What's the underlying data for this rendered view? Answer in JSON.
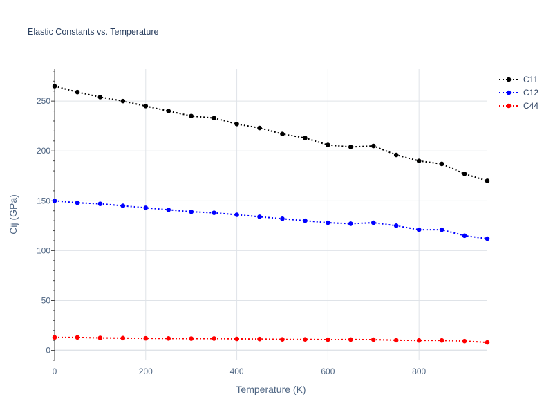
{
  "chart_data": {
    "type": "line",
    "title": "Elastic Constants vs. Temperature",
    "xlabel": "Temperature (K)",
    "ylabel": "Cij (GPa)",
    "xlim": [
      0,
      950
    ],
    "ylim": [
      -10,
      282
    ],
    "x_ticks": [
      "0",
      "200",
      "400",
      "600",
      "800"
    ],
    "y_ticks": [
      "0",
      "50",
      "100",
      "150",
      "200",
      "250"
    ],
    "grid": true,
    "legend_position": "top-right",
    "line_style": "dotted",
    "x": [
      0,
      50,
      100,
      150,
      200,
      250,
      300,
      350,
      400,
      450,
      500,
      550,
      600,
      650,
      700,
      750,
      800,
      850,
      900,
      950
    ],
    "series": [
      {
        "name": "C11",
        "color": "#000000",
        "values": [
          265,
          259,
          254,
          250,
          245,
          240,
          235,
          233,
          227,
          223,
          217,
          213,
          206,
          204,
          205,
          196,
          190,
          187,
          177,
          170
        ]
      },
      {
        "name": "C12",
        "color": "#0000ff",
        "values": [
          150,
          148,
          147,
          145,
          143,
          141,
          139,
          138,
          136,
          134,
          132,
          130,
          128,
          127,
          128,
          125,
          121,
          121,
          115,
          112
        ]
      },
      {
        "name": "C44",
        "color": "#ff0000",
        "values": [
          13,
          13,
          12.5,
          12.3,
          12.1,
          12,
          11.8,
          11.9,
          11.5,
          11.4,
          11,
          11,
          10.8,
          10.9,
          10.8,
          10.2,
          10,
          10,
          9.3,
          8
        ]
      }
    ]
  }
}
